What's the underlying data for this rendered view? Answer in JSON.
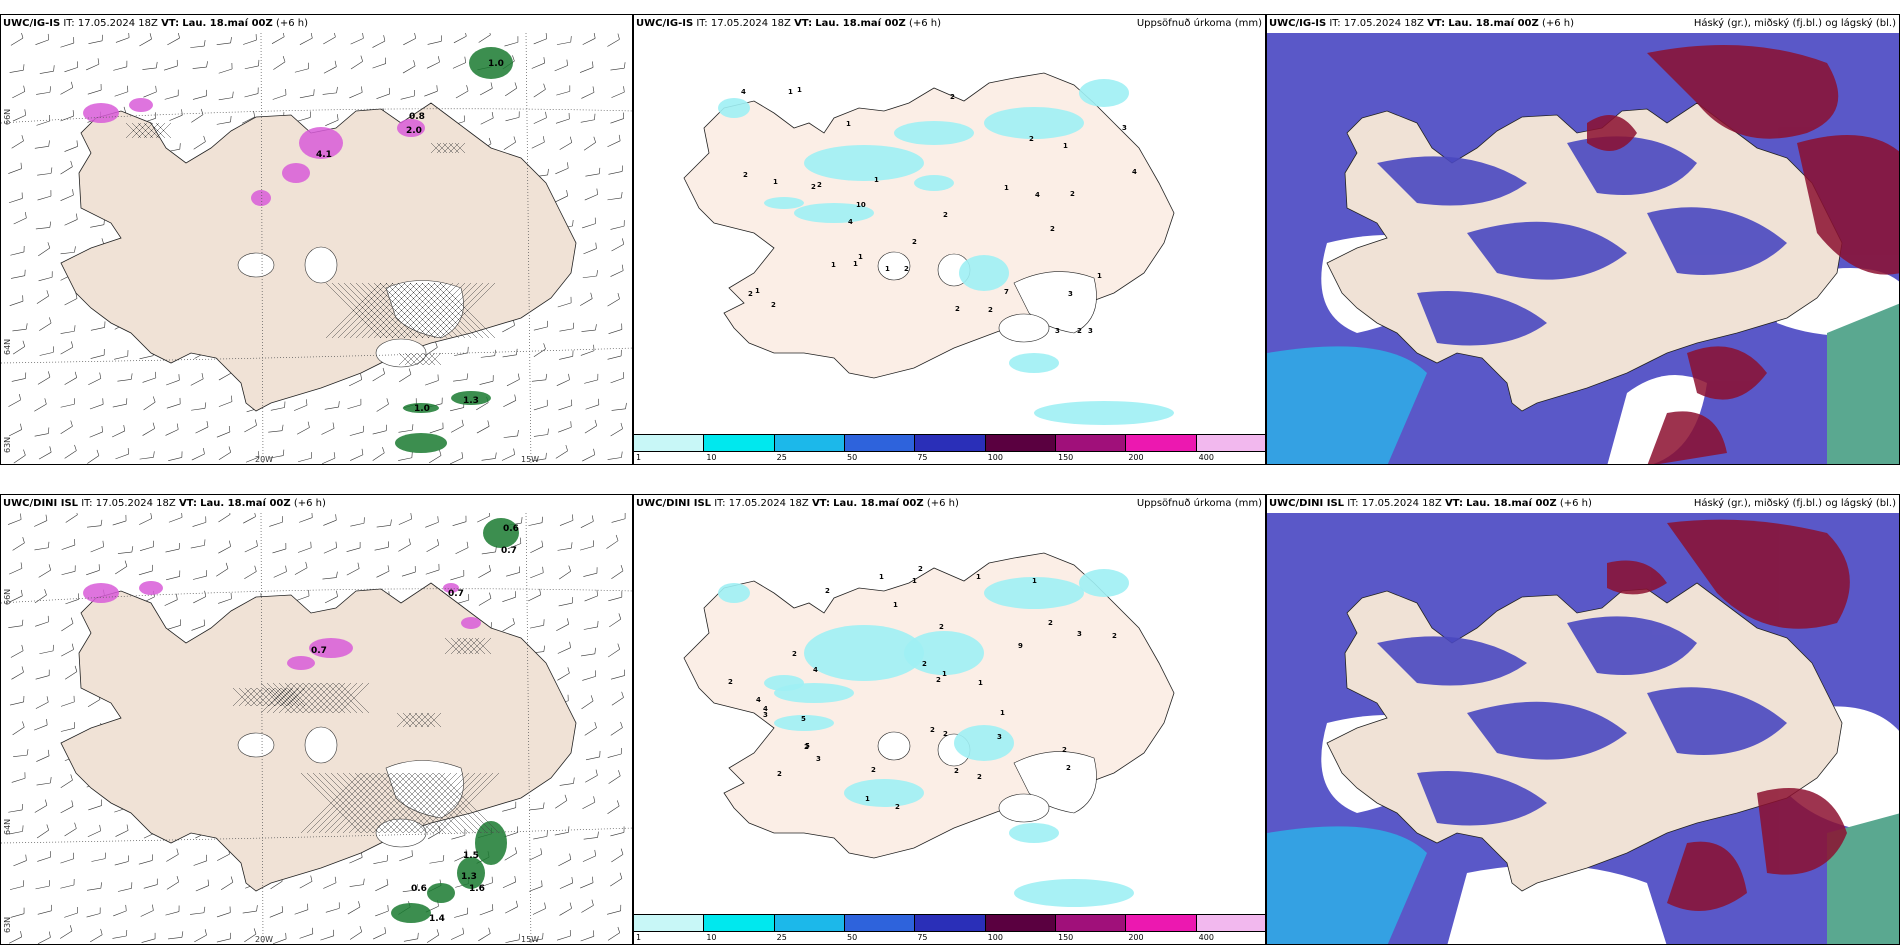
{
  "rows": [
    {
      "model": "UWC/IG-IS",
      "it_label": "IT:",
      "it_value": "17.05.2024 18Z",
      "vt_label": "VT:",
      "vt_value": "Lau. 18.maí 00Z",
      "lead": "(+6 h)",
      "wind_labels": [
        "1.0",
        "0.8",
        "2.0",
        "4.1",
        "1.0",
        "1.3"
      ],
      "precip_numbers": [
        "2",
        "2",
        "1",
        "2",
        "3",
        "1",
        "2",
        "4",
        "1",
        "4",
        "2",
        "2",
        "4",
        "3",
        "10",
        "7",
        "2",
        "4",
        "3",
        "1",
        "2",
        "2",
        "2",
        "1",
        "3",
        "1",
        "2",
        "1",
        "1",
        "2",
        "1",
        "1",
        "2",
        "1",
        "2",
        "2",
        "1",
        "1"
      ]
    },
    {
      "model": "UWC/DINI ISL",
      "it_label": "IT:",
      "it_value": "17.05.2024 18Z",
      "vt_label": "VT:",
      "vt_value": "Lau. 18.maí 00Z",
      "lead": "(+6 h)",
      "wind_labels": [
        "0.6",
        "0.7",
        "0.7",
        "0.7",
        "1.5",
        "1.3",
        "0.6",
        "1.6",
        "1.4"
      ],
      "precip_numbers": [
        "2",
        "1",
        "2",
        "2",
        "2",
        "4",
        "5",
        "5",
        "3",
        "9",
        "4",
        "2",
        "3",
        "2",
        "2",
        "1",
        "2",
        "2",
        "2",
        "1",
        "2",
        "1",
        "1",
        "1",
        "2",
        "2",
        "4",
        "1",
        "2",
        "1",
        "2",
        "3",
        "2",
        "2",
        "2",
        "3",
        "2",
        "1"
      ]
    }
  ],
  "precip_title": "Uppsöfnuð úrkoma (mm)",
  "cloud_title": "Háský (gr.), miðský (fj.bl.) og lágský (bl.)",
  "colorbar": {
    "ticks": [
      "1",
      "10",
      "25",
      "50",
      "75",
      "100",
      "150",
      "200",
      "400"
    ],
    "colors": [
      "#c8f7f7",
      "#00e8ee",
      "#1cb8ea",
      "#2e63dc",
      "#2a2fb8",
      "#5a0040",
      "#a0107a",
      "#ec18b0",
      "#f2b8ee"
    ]
  },
  "axes": {
    "lon": [
      "20W",
      "15W"
    ],
    "lat": [
      "66N",
      "64N",
      "63N"
    ]
  },
  "colors": {
    "land": "#f0e2d6",
    "land_precip": "#fbeee6",
    "wind_high": "#d85cd8",
    "wind_low": "#1a7a30",
    "precip": "#9ef0f4",
    "cloud_low": "#5a58c8",
    "cloud_mid": "#2bb4ea",
    "cloud_high": "#8c1030"
  }
}
